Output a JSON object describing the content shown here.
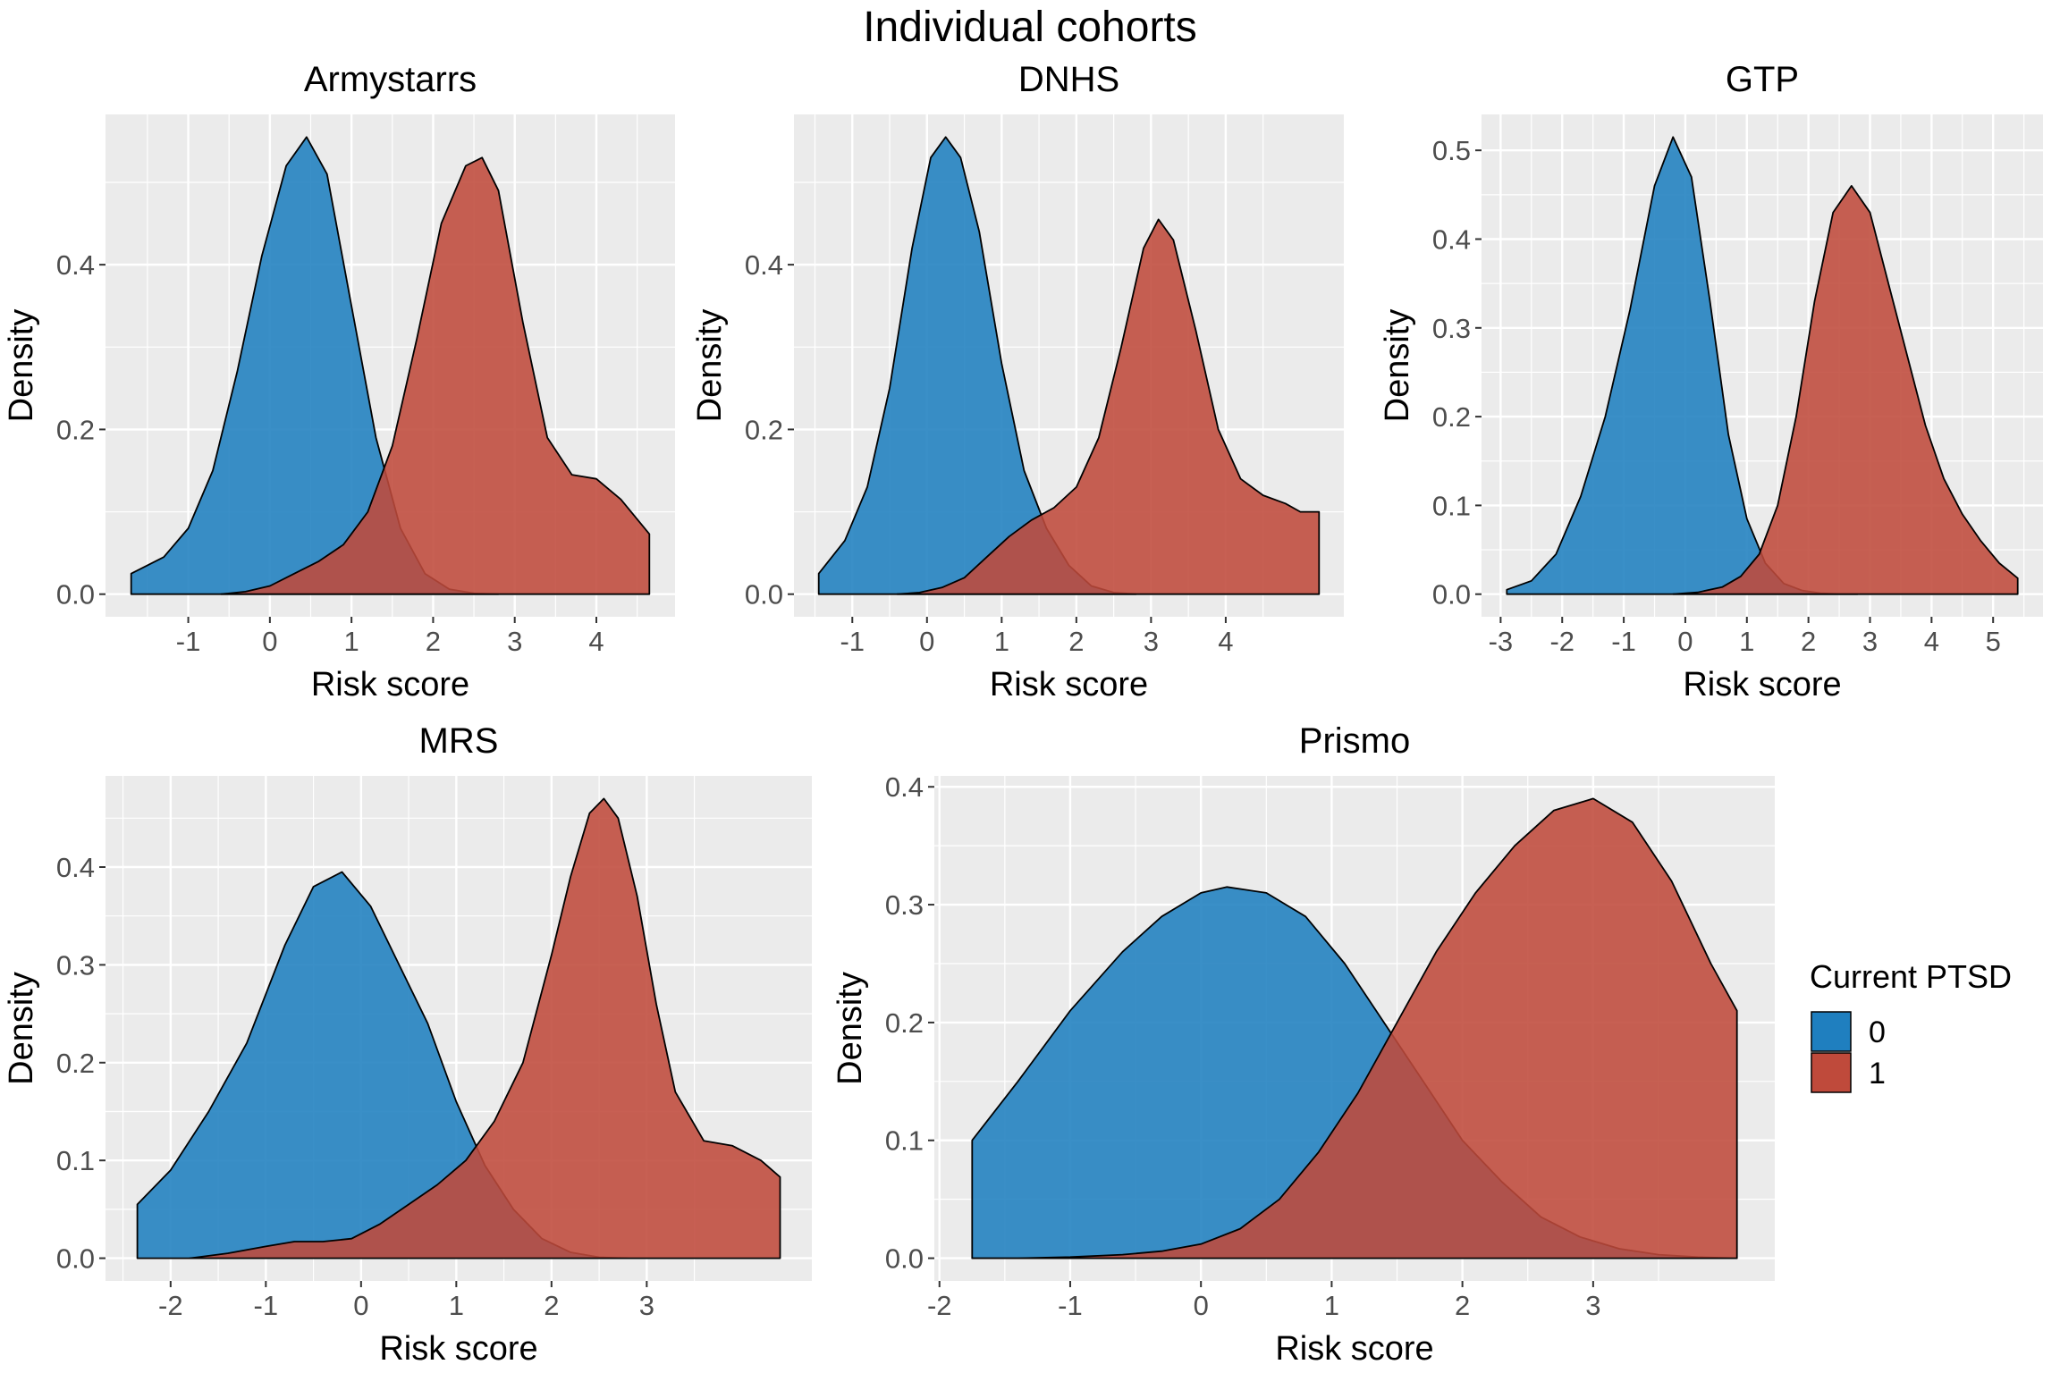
{
  "figure": {
    "title": "Individual cohorts",
    "legend": {
      "title": "Current PTSD",
      "items": [
        {
          "label": "0",
          "color": "#1f7fbf"
        },
        {
          "label": "1",
          "color": "#bf4a3b"
        }
      ]
    }
  },
  "colors": {
    "panel_bg": "#ebebeb",
    "grid": "#ffffff",
    "group0": "#1f7fbf",
    "group1": "#bf4a3b",
    "outline": "#000000"
  },
  "chart_data": [
    {
      "type": "area",
      "title": "Armystarrs",
      "xlabel": "Risk score",
      "ylabel": "Density",
      "xlim": [
        -1.7,
        4.65
      ],
      "ylim": [
        0,
        0.555
      ],
      "xticks": [
        -1,
        0,
        1,
        2,
        3,
        4
      ],
      "yticks": [
        0.0,
        0.2,
        0.4
      ],
      "ytick_labels": [
        "0.0",
        "0.2",
        "0.4"
      ],
      "series": [
        {
          "name": "0",
          "x": [
            -1.7,
            -1.3,
            -1.0,
            -0.7,
            -0.4,
            -0.1,
            0.2,
            0.45,
            0.7,
            1.0,
            1.3,
            1.6,
            1.9,
            2.2,
            2.5,
            2.8
          ],
          "y": [
            0.025,
            0.045,
            0.08,
            0.15,
            0.27,
            0.41,
            0.52,
            0.555,
            0.51,
            0.35,
            0.19,
            0.08,
            0.025,
            0.006,
            0.001,
            0.0
          ]
        },
        {
          "name": "1",
          "x": [
            -0.6,
            -0.3,
            0.0,
            0.3,
            0.6,
            0.9,
            1.2,
            1.5,
            1.8,
            2.1,
            2.4,
            2.6,
            2.8,
            3.1,
            3.4,
            3.7,
            4.0,
            4.3,
            4.65
          ],
          "y": [
            0.0,
            0.003,
            0.01,
            0.025,
            0.04,
            0.06,
            0.1,
            0.18,
            0.31,
            0.45,
            0.52,
            0.53,
            0.49,
            0.33,
            0.19,
            0.145,
            0.14,
            0.115,
            0.073
          ]
        }
      ]
    },
    {
      "type": "area",
      "title": "DNHS",
      "xlabel": "Risk score",
      "ylabel": "Density",
      "xlim": [
        -1.45,
        5.25
      ],
      "ylim": [
        0,
        0.555
      ],
      "xticks": [
        -1,
        0,
        1,
        2,
        3,
        4
      ],
      "yticks": [
        0.0,
        0.2,
        0.4
      ],
      "ytick_labels": [
        "0.0",
        "0.2",
        "0.4"
      ],
      "series": [
        {
          "name": "0",
          "x": [
            -1.45,
            -1.1,
            -0.8,
            -0.5,
            -0.2,
            0.05,
            0.25,
            0.45,
            0.7,
            1.0,
            1.3,
            1.6,
            1.9,
            2.2,
            2.5,
            2.8
          ],
          "y": [
            0.025,
            0.065,
            0.13,
            0.25,
            0.42,
            0.53,
            0.555,
            0.53,
            0.44,
            0.28,
            0.15,
            0.08,
            0.035,
            0.01,
            0.002,
            0.0
          ]
        },
        {
          "name": "1",
          "x": [
            -0.4,
            -0.1,
            0.2,
            0.5,
            0.8,
            1.1,
            1.4,
            1.7,
            2.0,
            2.3,
            2.6,
            2.9,
            3.1,
            3.3,
            3.6,
            3.9,
            4.2,
            4.5,
            4.8,
            5.0,
            5.25
          ],
          "y": [
            0.0,
            0.002,
            0.008,
            0.02,
            0.045,
            0.07,
            0.09,
            0.105,
            0.13,
            0.19,
            0.3,
            0.42,
            0.455,
            0.43,
            0.32,
            0.2,
            0.14,
            0.12,
            0.11,
            0.1,
            0.1
          ]
        }
      ]
    },
    {
      "type": "area",
      "title": "GTP",
      "xlabel": "Risk score",
      "ylabel": "Density",
      "xlim": [
        -2.9,
        5.4
      ],
      "ylim": [
        0,
        0.515
      ],
      "xticks": [
        -3,
        -2,
        -1,
        0,
        1,
        2,
        3,
        4,
        5
      ],
      "yticks": [
        0.0,
        0.1,
        0.2,
        0.3,
        0.4,
        0.5
      ],
      "ytick_labels": [
        "0.0",
        "0.1",
        "0.2",
        "0.3",
        "0.4",
        "0.5"
      ],
      "series": [
        {
          "name": "0",
          "x": [
            -2.9,
            -2.5,
            -2.1,
            -1.7,
            -1.3,
            -0.9,
            -0.5,
            -0.2,
            0.1,
            0.4,
            0.7,
            1.0,
            1.3,
            1.6,
            1.9,
            2.2,
            2.5,
            2.8
          ],
          "y": [
            0.005,
            0.015,
            0.045,
            0.11,
            0.2,
            0.32,
            0.46,
            0.515,
            0.47,
            0.33,
            0.18,
            0.085,
            0.035,
            0.012,
            0.004,
            0.001,
            0.0,
            0.0
          ]
        },
        {
          "name": "1",
          "x": [
            -0.2,
            0.2,
            0.6,
            0.9,
            1.2,
            1.5,
            1.8,
            2.1,
            2.4,
            2.7,
            3.0,
            3.3,
            3.6,
            3.9,
            4.2,
            4.5,
            4.8,
            5.1,
            5.4
          ],
          "y": [
            0.0,
            0.002,
            0.008,
            0.02,
            0.045,
            0.1,
            0.2,
            0.33,
            0.43,
            0.46,
            0.43,
            0.35,
            0.27,
            0.19,
            0.13,
            0.09,
            0.06,
            0.035,
            0.018
          ]
        }
      ]
    },
    {
      "type": "area",
      "title": "MRS",
      "xlabel": "Risk score",
      "ylabel": "Density",
      "xlim": [
        -2.35,
        4.4
      ],
      "ylim": [
        0,
        0.47
      ],
      "xticks": [
        -2,
        -1,
        0,
        1,
        2,
        3
      ],
      "yticks": [
        0.0,
        0.1,
        0.2,
        0.3,
        0.4
      ],
      "ytick_labels": [
        "0.0",
        "0.1",
        "0.2",
        "0.3",
        "0.4"
      ],
      "series": [
        {
          "name": "0",
          "x": [
            -2.35,
            -2.0,
            -1.6,
            -1.2,
            -0.8,
            -0.5,
            -0.2,
            0.1,
            0.4,
            0.7,
            1.0,
            1.3,
            1.6,
            1.9,
            2.2,
            2.5,
            2.8
          ],
          "y": [
            0.055,
            0.09,
            0.15,
            0.22,
            0.32,
            0.38,
            0.395,
            0.36,
            0.3,
            0.24,
            0.16,
            0.095,
            0.05,
            0.02,
            0.006,
            0.001,
            0.0
          ]
        },
        {
          "name": "1",
          "x": [
            -1.8,
            -1.4,
            -1.0,
            -0.7,
            -0.4,
            -0.1,
            0.2,
            0.5,
            0.8,
            1.1,
            1.4,
            1.7,
            2.0,
            2.2,
            2.4,
            2.55,
            2.7,
            2.9,
            3.1,
            3.3,
            3.6,
            3.9,
            4.2,
            4.4
          ],
          "y": [
            0.0,
            0.005,
            0.012,
            0.017,
            0.017,
            0.02,
            0.035,
            0.055,
            0.075,
            0.1,
            0.14,
            0.2,
            0.31,
            0.39,
            0.455,
            0.47,
            0.45,
            0.37,
            0.26,
            0.17,
            0.12,
            0.115,
            0.1,
            0.083
          ]
        }
      ]
    },
    {
      "type": "area",
      "title": "Prismo",
      "xlabel": "Risk score",
      "ylabel": "Density",
      "xlim": [
        -1.75,
        4.1
      ],
      "ylim": [
        0,
        0.39
      ],
      "xticks": [
        -2,
        -1,
        0,
        1,
        2,
        3
      ],
      "yticks": [
        0.0,
        0.1,
        0.2,
        0.3,
        0.4
      ],
      "ytick_labels": [
        "0.0",
        "0.1",
        "0.2",
        "0.3",
        "0.4"
      ],
      "series": [
        {
          "name": "0",
          "x": [
            -1.75,
            -1.4,
            -1.0,
            -0.6,
            -0.3,
            0.0,
            0.2,
            0.5,
            0.8,
            1.1,
            1.4,
            1.7,
            2.0,
            2.3,
            2.6,
            2.9,
            3.2,
            3.5,
            3.8,
            4.1
          ],
          "y": [
            0.1,
            0.15,
            0.21,
            0.26,
            0.29,
            0.31,
            0.315,
            0.31,
            0.29,
            0.25,
            0.2,
            0.15,
            0.1,
            0.065,
            0.035,
            0.018,
            0.008,
            0.003,
            0.001,
            0.0
          ]
        },
        {
          "name": "1",
          "x": [
            -1.75,
            -1.4,
            -1.0,
            -0.6,
            -0.3,
            0.0,
            0.3,
            0.6,
            0.9,
            1.2,
            1.5,
            1.8,
            2.1,
            2.4,
            2.7,
            3.0,
            3.3,
            3.6,
            3.9,
            4.1
          ],
          "y": [
            0.0,
            0.0,
            0.001,
            0.003,
            0.006,
            0.012,
            0.025,
            0.05,
            0.09,
            0.14,
            0.2,
            0.26,
            0.31,
            0.35,
            0.38,
            0.39,
            0.37,
            0.32,
            0.25,
            0.21
          ]
        }
      ]
    }
  ]
}
